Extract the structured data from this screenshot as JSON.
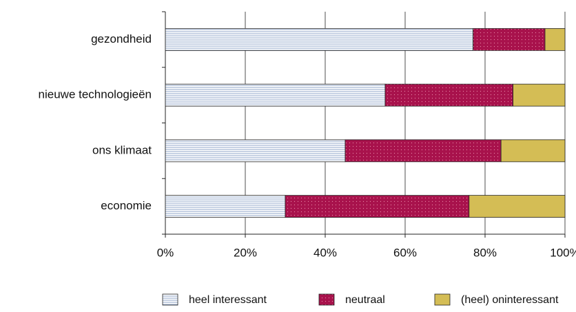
{
  "chart_data": {
    "type": "stacked_barh",
    "categories": [
      "gezondheid",
      "nieuwe technologieën",
      "ons klimaat",
      "economie"
    ],
    "series": [
      {
        "name": "heel interessant",
        "color": "#8fa6c8",
        "values": [
          77,
          55,
          45,
          30
        ]
      },
      {
        "name": "neutraal",
        "color": "#a8124c",
        "values": [
          18,
          32,
          39,
          46
        ]
      },
      {
        "name": "(heel) oninteressant",
        "color": "#d4bd55",
        "values": [
          5,
          13,
          16,
          24
        ]
      }
    ],
    "xlim": [
      0,
      100
    ],
    "xticks": [
      {
        "value": 0,
        "label": "0%"
      },
      {
        "value": 20,
        "label": "20%"
      },
      {
        "value": 40,
        "label": "40%"
      },
      {
        "value": 60,
        "label": "60%"
      },
      {
        "value": 80,
        "label": "80%"
      },
      {
        "value": 100,
        "label": "100%"
      }
    ],
    "grid": true,
    "legend": "bottom"
  }
}
